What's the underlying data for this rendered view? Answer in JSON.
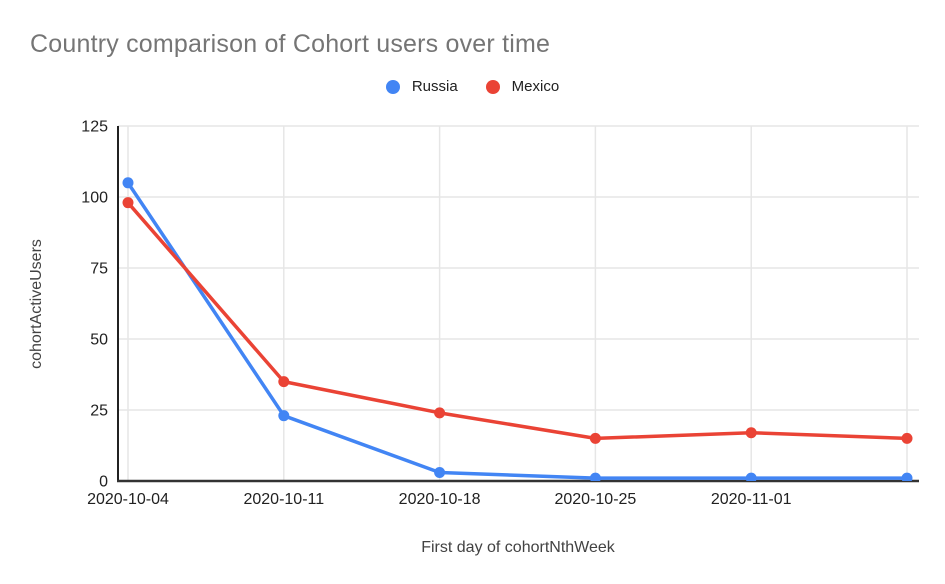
{
  "title": "Country comparison of Cohort users over time",
  "legend": {
    "position": "top",
    "items": [
      {
        "label": "Russia",
        "color": "#4285F4"
      },
      {
        "label": "Mexico",
        "color": "#EA4335"
      }
    ]
  },
  "chart_data": {
    "type": "line",
    "x_tick_labels": [
      "2020-10-04",
      "2020-10-11",
      "2020-10-18",
      "2020-10-25",
      "2020-11-01",
      ""
    ],
    "series": [
      {
        "name": "Russia",
        "color": "#4285F4",
        "values": [
          105,
          23,
          3,
          1,
          1,
          1
        ]
      },
      {
        "name": "Mexico",
        "color": "#EA4335",
        "values": [
          98,
          35,
          24,
          15,
          17,
          15
        ]
      }
    ],
    "title": "Country comparison of Cohort users over time",
    "xlabel": "First day of cohortNthWeek",
    "ylabel": "cohortActiveUsers",
    "ylim": [
      0,
      125
    ],
    "y_ticks": [
      0,
      25,
      50,
      75,
      100,
      125
    ],
    "grid": true,
    "legend_position": "top"
  },
  "colors": {
    "gridline": "#e6e6e6",
    "axis_y": "#212121",
    "axis_x": "#333333",
    "title_text": "#757575",
    "tick_label_text": "#212121",
    "axis_title_text": "#424242",
    "background": "#ffffff"
  }
}
